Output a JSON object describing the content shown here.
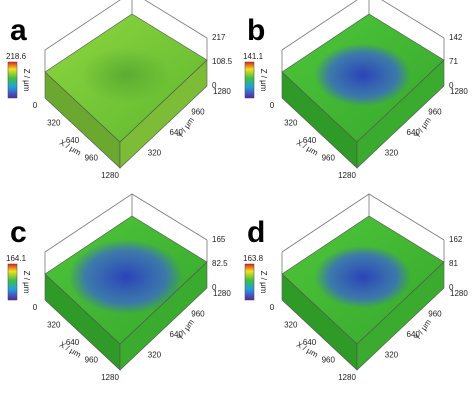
{
  "panels": [
    {
      "label": "a",
      "colorbar_max": "218.6",
      "z_axis_label": "Z / μm",
      "z_ticks": [
        "0",
        "108.5",
        "217"
      ],
      "x_axis_label": "X / μm",
      "x_ticks": [
        "0",
        "320",
        "640",
        "960",
        "1280"
      ],
      "y_axis_label": "Y / μm",
      "y_ticks": [
        "320",
        "640",
        "960",
        "1280"
      ]
    },
    {
      "label": "b",
      "colorbar_max": "141.1",
      "z_axis_label": "Z / μm",
      "z_ticks": [
        "0",
        "71",
        "142"
      ],
      "x_axis_label": "X / μm",
      "x_ticks": [
        "0",
        "320",
        "640",
        "960",
        "1280"
      ],
      "y_axis_label": "Y / μm",
      "y_ticks": [
        "320",
        "640",
        "960",
        "1280"
      ]
    },
    {
      "label": "c",
      "colorbar_max": "164.1",
      "z_axis_label": "Z / μm",
      "z_ticks": [
        "0",
        "82.5",
        "165"
      ],
      "x_axis_label": "X / μm",
      "x_ticks": [
        "0",
        "320",
        "640",
        "960",
        "1280"
      ],
      "y_axis_label": "Y / μm",
      "y_ticks": [
        "320",
        "640",
        "960",
        "1280"
      ]
    },
    {
      "label": "d",
      "colorbar_max": "163.8",
      "z_axis_label": "Z / μm",
      "z_ticks": [
        "0",
        "81",
        "162"
      ],
      "x_axis_label": "X / μm",
      "x_ticks": [
        "0",
        "320",
        "640",
        "960",
        "1280"
      ],
      "y_axis_label": "Y / μm",
      "y_ticks": [
        "320",
        "640",
        "960",
        "1280"
      ]
    }
  ]
}
